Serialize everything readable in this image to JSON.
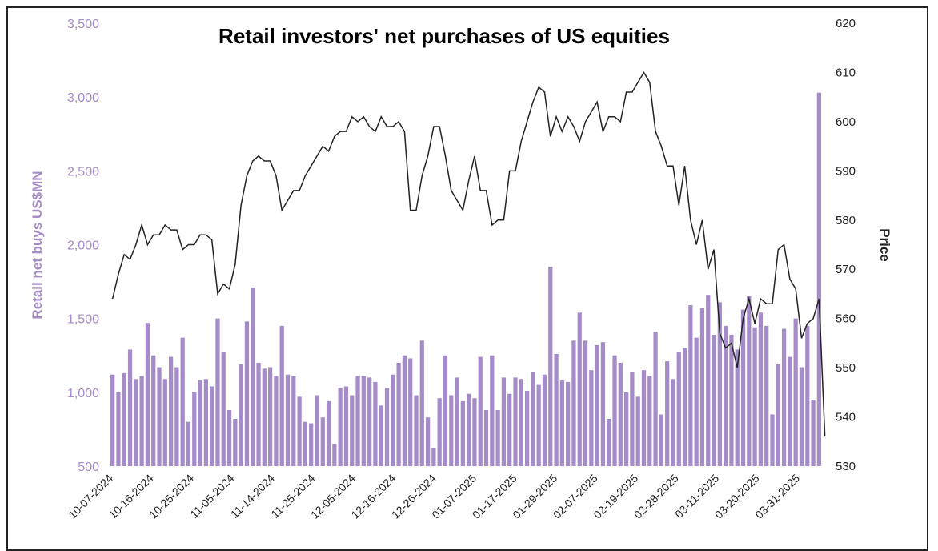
{
  "chart_data": {
    "type": "bar",
    "title": "Retail investors' net purchases of US equities",
    "ylabel": "Retail net buys US$MN",
    "y2label": "Price",
    "ylim": [
      500,
      3500
    ],
    "y2lim": [
      530,
      620
    ],
    "yticks": [
      "500",
      "1,000",
      "1,500",
      "2,000",
      "2,500",
      "3,000",
      "3,500"
    ],
    "y2ticks": [
      "530",
      "540",
      "550",
      "560",
      "570",
      "580",
      "590",
      "600",
      "610",
      "620"
    ],
    "xtick_labels": [
      "10-07-2024",
      "10-16-2024",
      "10-25-2024",
      "11-05-2024",
      "11-14-2024",
      "11-25-2024",
      "12-05-2024",
      "12-16-2024",
      "12-26-2024",
      "01-07-2025",
      "01-17-2025",
      "01-29-2025",
      "02-07-2025",
      "02-19-2025",
      "02-28-2025",
      "03-11-2025",
      "03-20-2025",
      "03-31-2025"
    ],
    "colors": {
      "bars": "#a58cc8",
      "price_line": "#222222"
    },
    "series": [
      {
        "name": "Retail net buys US$MN",
        "kind": "bar",
        "axis": "left",
        "values": [
          1120,
          1000,
          1130,
          1290,
          1090,
          1110,
          1470,
          1250,
          1170,
          1090,
          1240,
          1170,
          1370,
          800,
          1000,
          1080,
          1090,
          1040,
          1500,
          1270,
          880,
          820,
          1190,
          1480,
          1710,
          1200,
          1160,
          1170,
          1110,
          1450,
          1120,
          1110,
          970,
          800,
          790,
          980,
          830,
          940,
          650,
          1030,
          1040,
          980,
          1110,
          1110,
          1100,
          1070,
          910,
          1030,
          1120,
          1200,
          1250,
          1230,
          980,
          1350,
          830,
          620,
          960,
          1250,
          980,
          1100,
          940,
          990,
          960,
          1240,
          880,
          1250,
          880,
          1100,
          990,
          1100,
          1090,
          1010,
          1140,
          1050,
          1120,
          1850,
          1260,
          1080,
          1070,
          1350,
          1540,
          1350,
          1150,
          1320,
          1340,
          820,
          1250,
          1200,
          1000,
          1140,
          970,
          1150,
          1110,
          1410,
          850,
          1210,
          1090,
          1270,
          1300,
          1590,
          1370,
          1570,
          1660,
          1390,
          1610,
          1450,
          1390,
          1290,
          1560,
          1650,
          1440,
          1540,
          1450,
          850,
          1190,
          1430,
          1240,
          1500,
          1170,
          1450,
          950,
          3030
        ]
      },
      {
        "name": "Price",
        "kind": "line",
        "axis": "right",
        "values": [
          564,
          569,
          573,
          572,
          575,
          579,
          575,
          577,
          577,
          579,
          578,
          578,
          574,
          575,
          575,
          577,
          577,
          576,
          565,
          567,
          566,
          571,
          583,
          589,
          592,
          593,
          592,
          592,
          589,
          582,
          584,
          586,
          586,
          589,
          591,
          593,
          595,
          594,
          597,
          598,
          598,
          601,
          600,
          601,
          599,
          598,
          601,
          599,
          599,
          600,
          598,
          582,
          582,
          589,
          593,
          599,
          599,
          593,
          586,
          584,
          582,
          588,
          593,
          586,
          586,
          579,
          580,
          580,
          590,
          590,
          596,
          600,
          604,
          607,
          606,
          597,
          601,
          598,
          601,
          599,
          596,
          600,
          602,
          604,
          598,
          601,
          601,
          600,
          606,
          606,
          608,
          610,
          608,
          598,
          595,
          591,
          591,
          583,
          591,
          580,
          575,
          580,
          570,
          574,
          557,
          554,
          555,
          550,
          560,
          564,
          559,
          564,
          563,
          563,
          574,
          575,
          568,
          566,
          556,
          559,
          560,
          564,
          536
        ]
      }
    ]
  }
}
